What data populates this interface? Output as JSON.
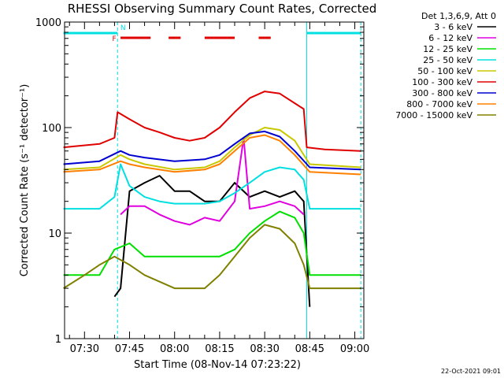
{
  "chart_data": {
    "type": "line",
    "title": "RHESSI Observing Summary Count Rates, Corrected",
    "xlabel": "Start Time (08-Nov-14 07:23:22)",
    "ylabel": "Corrected Count Rate (s⁻¹ detector⁻¹)",
    "yscale": "log",
    "ylim": [
      1,
      1000
    ],
    "xlim": [
      "07:23:22",
      "09:03:00"
    ],
    "x_ticks": [
      "07:30",
      "07:45",
      "08:00",
      "08:15",
      "08:30",
      "08:45",
      "09:00"
    ],
    "y_ticks": [
      "1",
      "10",
      "100",
      "1000"
    ],
    "legend_title": "Det 1,3,6,9, Att 0",
    "legend_position": "right",
    "series": [
      {
        "name": "3 - 6 keV",
        "color": "#000000",
        "x": [
          "07:40",
          "07:42",
          "07:45",
          "07:50",
          "07:55",
          "08:00",
          "08:05",
          "08:10",
          "08:15",
          "08:20",
          "08:25",
          "08:30",
          "08:35",
          "08:40",
          "08:43",
          "08:45"
        ],
        "y": [
          2.5,
          3,
          25,
          30,
          35,
          25,
          25,
          20,
          20,
          30,
          22,
          25,
          22,
          25,
          20,
          2
        ]
      },
      {
        "name": "6 - 12 keV",
        "color": "#e000e0",
        "x": [
          "07:42",
          "07:45",
          "07:50",
          "07:55",
          "08:00",
          "08:05",
          "08:10",
          "08:15",
          "08:20",
          "08:23",
          "08:25",
          "08:30",
          "08:35",
          "08:40",
          "08:43"
        ],
        "y": [
          15,
          18,
          18,
          15,
          13,
          12,
          14,
          13,
          20,
          80,
          17,
          18,
          20,
          18,
          15
        ]
      },
      {
        "name": "12 - 25 keV",
        "color": "#00e000",
        "x": [
          "07:23",
          "07:35",
          "07:40",
          "07:45",
          "07:50",
          "08:00",
          "08:10",
          "08:15",
          "08:20",
          "08:25",
          "08:30",
          "08:35",
          "08:40",
          "08:43",
          "08:45",
          "09:02"
        ],
        "y": [
          4,
          4,
          7,
          8,
          6,
          6,
          6,
          6,
          7,
          10,
          13,
          16,
          14,
          10,
          4,
          4
        ]
      },
      {
        "name": "25 - 50 keV",
        "color": "#00e0e0",
        "x": [
          "07:23",
          "07:35",
          "07:40",
          "07:42",
          "07:45",
          "07:50",
          "07:55",
          "08:00",
          "08:05",
          "08:10",
          "08:15",
          "08:20",
          "08:25",
          "08:30",
          "08:35",
          "08:40",
          "08:43",
          "08:45",
          "09:02"
        ],
        "y": [
          17,
          17,
          22,
          45,
          28,
          22,
          20,
          19,
          19,
          19,
          20,
          24,
          30,
          38,
          42,
          40,
          32,
          17,
          17
        ]
      },
      {
        "name": "50 - 100 keV",
        "color": "#c8c800",
        "x": [
          "07:23",
          "07:35",
          "07:42",
          "07:45",
          "07:50",
          "08:00",
          "08:10",
          "08:15",
          "08:20",
          "08:25",
          "08:30",
          "08:35",
          "08:40",
          "08:45",
          "09:02"
        ],
        "y": [
          40,
          42,
          55,
          50,
          45,
          40,
          42,
          48,
          65,
          85,
          100,
          95,
          75,
          45,
          42
        ]
      },
      {
        "name": "100 - 300 keV",
        "color": "#e00000",
        "x": [
          "07:23",
          "07:35",
          "07:40",
          "07:41",
          "07:45",
          "07:50",
          "07:55",
          "08:00",
          "08:05",
          "08:10",
          "08:15",
          "08:20",
          "08:25",
          "08:30",
          "08:35",
          "08:40",
          "08:43",
          "08:44",
          "08:50",
          "09:02"
        ],
        "y": [
          65,
          70,
          80,
          140,
          120,
          100,
          90,
          80,
          75,
          80,
          100,
          140,
          190,
          220,
          210,
          170,
          150,
          65,
          62,
          60
        ]
      },
      {
        "name": "300 - 800 keV",
        "color": "#0000d0",
        "x": [
          "07:23",
          "07:35",
          "07:42",
          "07:45",
          "07:50",
          "08:00",
          "08:10",
          "08:15",
          "08:20",
          "08:25",
          "08:30",
          "08:35",
          "08:40",
          "08:45",
          "09:02"
        ],
        "y": [
          45,
          48,
          60,
          55,
          52,
          48,
          50,
          55,
          70,
          88,
          92,
          82,
          60,
          42,
          40
        ]
      },
      {
        "name": "800 - 7000 keV",
        "color": "#ff8000",
        "x": [
          "07:23",
          "07:35",
          "07:42",
          "07:45",
          "07:50",
          "08:00",
          "08:10",
          "08:15",
          "08:20",
          "08:25",
          "08:30",
          "08:35",
          "08:40",
          "08:45",
          "09:02"
        ],
        "y": [
          38,
          40,
          48,
          45,
          42,
          38,
          40,
          45,
          60,
          80,
          85,
          75,
          55,
          38,
          36
        ]
      },
      {
        "name": "7000 - 15000 keV",
        "color": "#808000",
        "x": [
          "07:23",
          "07:30",
          "07:35",
          "07:40",
          "07:45",
          "07:50",
          "08:00",
          "08:10",
          "08:15",
          "08:20",
          "08:25",
          "08:30",
          "08:35",
          "08:40",
          "08:43",
          "08:45",
          "09:02"
        ],
        "y": [
          3,
          4,
          5,
          6,
          5,
          4,
          3,
          3,
          4,
          6,
          9,
          12,
          11,
          8,
          5,
          3,
          3
        ]
      }
    ],
    "flags": [
      {
        "label": "N",
        "color": "#00e0e0",
        "intervals": [
          [
            "07:23",
            "07:41"
          ],
          [
            "08:44",
            "09:02"
          ]
        ]
      },
      {
        "label": "F",
        "color": "#e00000",
        "intervals": [
          [
            "07:42",
            "07:52"
          ],
          [
            "07:58",
            "08:02"
          ],
          [
            "08:10",
            "08:20"
          ],
          [
            "08:28",
            "08:32"
          ]
        ]
      }
    ],
    "vlines": [
      {
        "x": "07:41",
        "color": "#00e0e0",
        "style": "dashed"
      },
      {
        "x": "08:44",
        "color": "#00e0e0",
        "style": "solid"
      },
      {
        "x": "09:02",
        "color": "#00e0e0",
        "style": "dashed"
      }
    ]
  },
  "footer": {
    "timestamp": "22-Oct-2021 09:01"
  }
}
